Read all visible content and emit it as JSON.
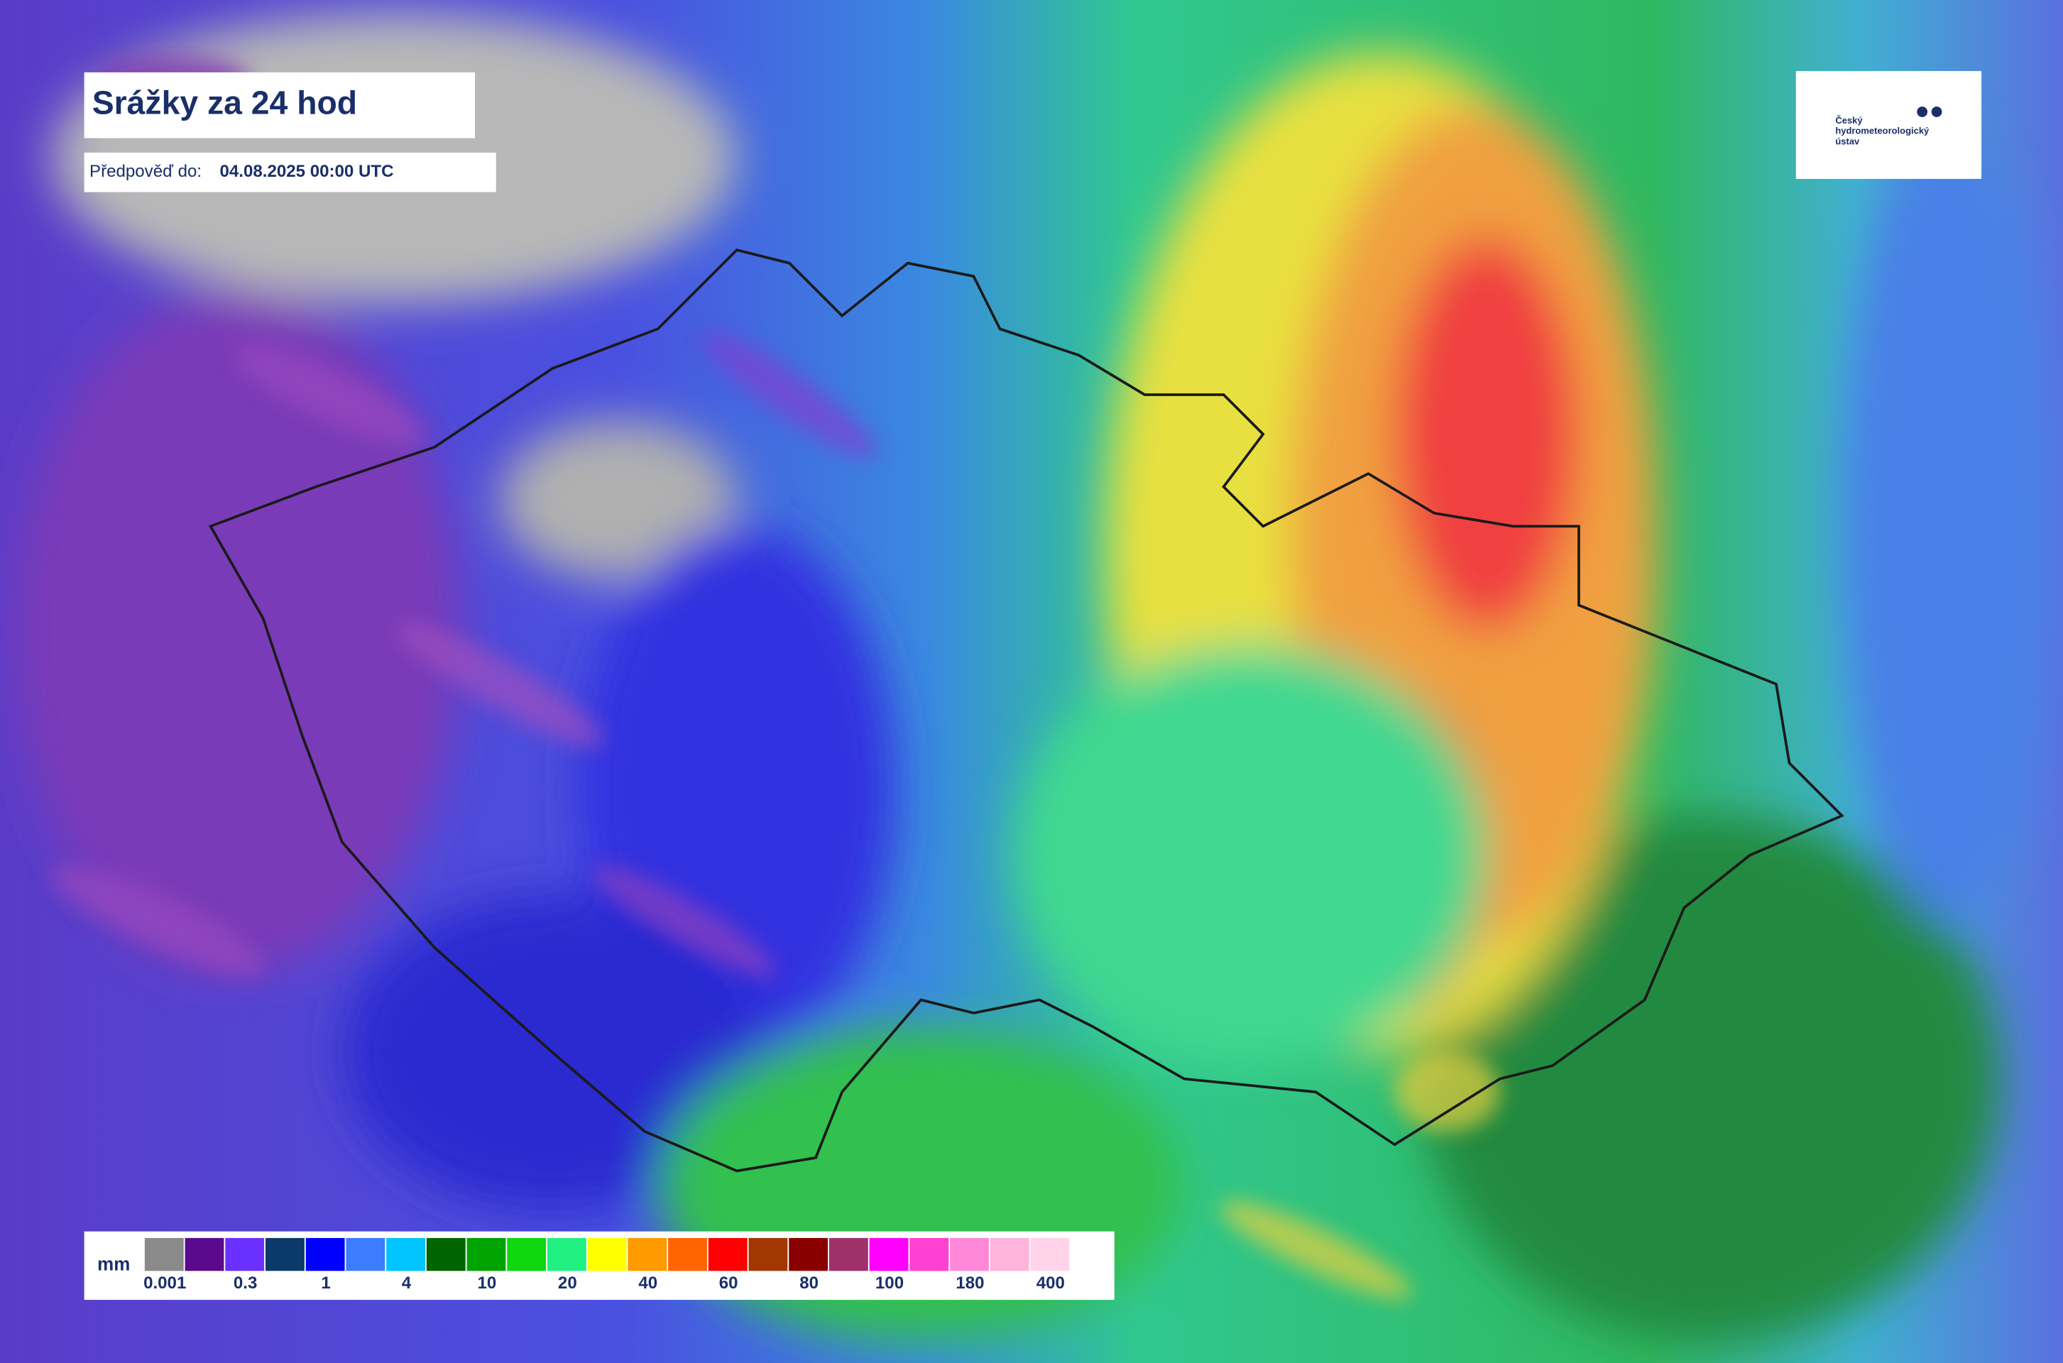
{
  "header": {
    "title": "Srážky za 24 hod",
    "forecast_label": "Předpověď do:",
    "forecast_time": "04.08.2025 00:00 UTC"
  },
  "logo": {
    "lines": [
      "Český",
      "hydrometeorologický",
      "ústav"
    ]
  },
  "legend": {
    "unit": "mm",
    "labels": [
      "0.001",
      "0.3",
      "1",
      "4",
      "10",
      "20",
      "40",
      "60",
      "80",
      "100",
      "180",
      "400"
    ],
    "colors": [
      "#8a8a8a",
      "#5b0a8e",
      "#6a30ff",
      "#0b3a6a",
      "#0000ff",
      "#3c7cff",
      "#00c4ff",
      "#006400",
      "#00a400",
      "#10d810",
      "#20f080",
      "#ffff00",
      "#ff9a00",
      "#ff6400",
      "#ff0000",
      "#a03800",
      "#8a0000",
      "#a0306a",
      "#ff00ff",
      "#ff40d0",
      "#ff88d8",
      "#ffb4dc",
      "#ffd4ea"
    ]
  }
}
